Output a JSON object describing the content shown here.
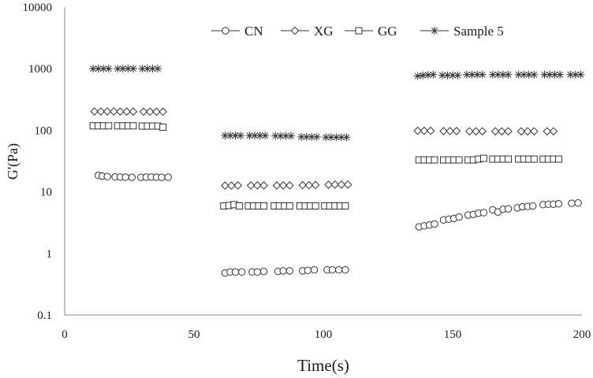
{
  "chart_data": {
    "type": "scatter",
    "title": "",
    "xlabel": "Time(s)",
    "ylabel": "G'(Pa)",
    "xlim": [
      0,
      200
    ],
    "ylim": [
      0.1,
      10000
    ],
    "yscale": "log",
    "grid": false,
    "legend": "top",
    "xticks": [
      "0",
      "50",
      "100",
      "150",
      "200"
    ],
    "yticks": [
      "0.1",
      "1",
      "10",
      "100",
      "1000",
      "10000"
    ],
    "series": [
      {
        "name": "CN",
        "marker": "circle",
        "points": [
          [
            13,
            18.5
          ],
          [
            14.5,
            18
          ],
          [
            16.5,
            17.7
          ],
          [
            19.5,
            17.5
          ],
          [
            21.5,
            17.4
          ],
          [
            23.5,
            17.3
          ],
          [
            26,
            17.2
          ],
          [
            29.5,
            17.2
          ],
          [
            31.5,
            17.3
          ],
          [
            33.5,
            17.4
          ],
          [
            35.5,
            17.3
          ],
          [
            37.5,
            17.2
          ],
          [
            40,
            17.3
          ],
          [
            62,
            0.48
          ],
          [
            64,
            0.5
          ],
          [
            66,
            0.5
          ],
          [
            68.5,
            0.5
          ],
          [
            72.5,
            0.5
          ],
          [
            74.5,
            0.5
          ],
          [
            77,
            0.51
          ],
          [
            82.5,
            0.51
          ],
          [
            84.5,
            0.52
          ],
          [
            87,
            0.52
          ],
          [
            92,
            0.52
          ],
          [
            94,
            0.53
          ],
          [
            96.5,
            0.54
          ],
          [
            101.5,
            0.54
          ],
          [
            103.5,
            0.54
          ],
          [
            106,
            0.54
          ],
          [
            108.5,
            0.54
          ],
          [
            137,
            2.7
          ],
          [
            139,
            2.8
          ],
          [
            141,
            2.9
          ],
          [
            143,
            3.0
          ],
          [
            146.5,
            3.5
          ],
          [
            148.5,
            3.6
          ],
          [
            150.5,
            3.7
          ],
          [
            152.5,
            3.9
          ],
          [
            156,
            4.2
          ],
          [
            158,
            4.3
          ],
          [
            160,
            4.5
          ],
          [
            162,
            4.6
          ],
          [
            165.5,
            5.1
          ],
          [
            167.5,
            4.7
          ],
          [
            169.5,
            5.2
          ],
          [
            171.5,
            5.3
          ],
          [
            175,
            5.5
          ],
          [
            177,
            5.7
          ],
          [
            179,
            5.8
          ],
          [
            181,
            5.9
          ],
          [
            185,
            6.2
          ],
          [
            187,
            6.3
          ],
          [
            189,
            6.3
          ],
          [
            191,
            6.4
          ],
          [
            196,
            6.5
          ],
          [
            198.5,
            6.6
          ]
        ]
      },
      {
        "name": "XG",
        "marker": "diamond",
        "points": [
          [
            11.5,
            202
          ],
          [
            14,
            202
          ],
          [
            16.5,
            202
          ],
          [
            19,
            202
          ],
          [
            21.5,
            201
          ],
          [
            24,
            201
          ],
          [
            26.5,
            201
          ],
          [
            30.5,
            200
          ],
          [
            33,
            200
          ],
          [
            35.5,
            200
          ],
          [
            38,
            200
          ],
          [
            62,
            12.6
          ],
          [
            64.5,
            12.6
          ],
          [
            67,
            12.7
          ],
          [
            72,
            12.7
          ],
          [
            74.5,
            12.7
          ],
          [
            77,
            12.7
          ],
          [
            82,
            12.7
          ],
          [
            84.5,
            12.7
          ],
          [
            87,
            12.7
          ],
          [
            92,
            12.8
          ],
          [
            94.5,
            12.8
          ],
          [
            97,
            12.9
          ],
          [
            102,
            13.0
          ],
          [
            104.5,
            13.1
          ],
          [
            107,
            13.1
          ],
          [
            109.5,
            13.1
          ],
          [
            136.5,
            98
          ],
          [
            139,
            98
          ],
          [
            141.5,
            98
          ],
          [
            146.5,
            97
          ],
          [
            149,
            97
          ],
          [
            151.5,
            97
          ],
          [
            156.5,
            96
          ],
          [
            159,
            96
          ],
          [
            161.5,
            96
          ],
          [
            166.5,
            96
          ],
          [
            169,
            96
          ],
          [
            171.5,
            96
          ],
          [
            176.5,
            96
          ],
          [
            179,
            96
          ],
          [
            181.5,
            96
          ],
          [
            186.5,
            96
          ],
          [
            189,
            96
          ]
        ]
      },
      {
        "name": "GG",
        "marker": "square",
        "points": [
          [
            11,
            118
          ],
          [
            13,
            118
          ],
          [
            15,
            118
          ],
          [
            17,
            118
          ],
          [
            20.5,
            118
          ],
          [
            22.5,
            118
          ],
          [
            24.5,
            118
          ],
          [
            26.5,
            118
          ],
          [
            30,
            117
          ],
          [
            32,
            117
          ],
          [
            34,
            117
          ],
          [
            36,
            117
          ],
          [
            38,
            112
          ],
          [
            61.5,
            5.9
          ],
          [
            63.5,
            6.0
          ],
          [
            65.5,
            6.2
          ],
          [
            67.5,
            5.9
          ],
          [
            71,
            5.9
          ],
          [
            73,
            5.9
          ],
          [
            75,
            5.9
          ],
          [
            77,
            5.9
          ],
          [
            81,
            5.9
          ],
          [
            83,
            5.9
          ],
          [
            85,
            5.9
          ],
          [
            87,
            5.9
          ],
          [
            91,
            5.9
          ],
          [
            93,
            5.9
          ],
          [
            95,
            5.9
          ],
          [
            97,
            5.9
          ],
          [
            100.5,
            5.9
          ],
          [
            102.5,
            5.9
          ],
          [
            104.5,
            5.9
          ],
          [
            106.5,
            5.9
          ],
          [
            108.5,
            5.9
          ],
          [
            137,
            33
          ],
          [
            139,
            33
          ],
          [
            141,
            33
          ],
          [
            143,
            33
          ],
          [
            146.5,
            33
          ],
          [
            148.5,
            33
          ],
          [
            150.5,
            33
          ],
          [
            152.5,
            33
          ],
          [
            156,
            33
          ],
          [
            158,
            33
          ],
          [
            160,
            34
          ],
          [
            162,
            35
          ],
          [
            165.5,
            34
          ],
          [
            167.5,
            34
          ],
          [
            169.5,
            34
          ],
          [
            171.5,
            34
          ],
          [
            175.5,
            34
          ],
          [
            177.5,
            34
          ],
          [
            179.5,
            34
          ],
          [
            181.5,
            34
          ],
          [
            185,
            34
          ],
          [
            187,
            34
          ],
          [
            189,
            34
          ],
          [
            191,
            34
          ]
        ]
      },
      {
        "name": "Sample 5",
        "marker": "asterisk",
        "points": [
          [
            11,
            1000
          ],
          [
            13,
            1000
          ],
          [
            15,
            1000
          ],
          [
            17,
            1000
          ],
          [
            20.5,
            1000
          ],
          [
            22.5,
            1000
          ],
          [
            24.5,
            1000
          ],
          [
            26.5,
            1000
          ],
          [
            30,
            1000
          ],
          [
            32,
            1000
          ],
          [
            34,
            1000
          ],
          [
            36,
            1000
          ],
          [
            62,
            82
          ],
          [
            64,
            82
          ],
          [
            66,
            82
          ],
          [
            68,
            82
          ],
          [
            71.5,
            82
          ],
          [
            73.5,
            82
          ],
          [
            75.5,
            82
          ],
          [
            77.5,
            82
          ],
          [
            81.5,
            81
          ],
          [
            83.5,
            81
          ],
          [
            85.5,
            81
          ],
          [
            87.5,
            81
          ],
          [
            91.5,
            78
          ],
          [
            93.5,
            78
          ],
          [
            95.5,
            78
          ],
          [
            97.5,
            78
          ],
          [
            101,
            77
          ],
          [
            103,
            77
          ],
          [
            105,
            77
          ],
          [
            107,
            77
          ],
          [
            109,
            77
          ],
          [
            136.5,
            760
          ],
          [
            138.5,
            780
          ],
          [
            140.5,
            790
          ],
          [
            142.5,
            800
          ],
          [
            146,
            780
          ],
          [
            148,
            780
          ],
          [
            150,
            780
          ],
          [
            152,
            780
          ],
          [
            155.5,
            800
          ],
          [
            157.5,
            800
          ],
          [
            159.5,
            800
          ],
          [
            161.5,
            800
          ],
          [
            165.5,
            800
          ],
          [
            167.5,
            800
          ],
          [
            169.5,
            800
          ],
          [
            171.5,
            800
          ],
          [
            175.5,
            800
          ],
          [
            177.5,
            800
          ],
          [
            179.5,
            800
          ],
          [
            181.5,
            800
          ],
          [
            185.5,
            800
          ],
          [
            187.5,
            800
          ],
          [
            189.5,
            800
          ],
          [
            191.5,
            800
          ],
          [
            195.5,
            800
          ],
          [
            197.5,
            800
          ],
          [
            199.5,
            800
          ]
        ]
      }
    ]
  }
}
